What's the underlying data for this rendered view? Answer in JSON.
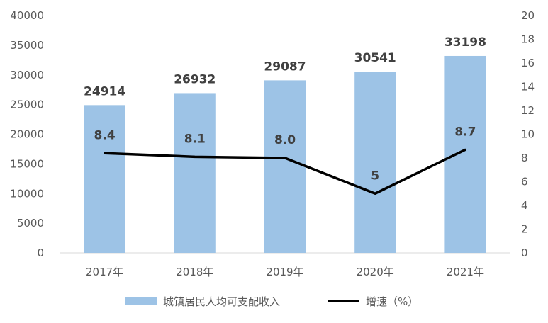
{
  "chart_data": {
    "type": "bar+line",
    "title": "",
    "categories": [
      "2017年",
      "2018年",
      "2019年",
      "2020年",
      "2021年"
    ],
    "series": [
      {
        "name": "城镇居民人均可支配收入",
        "type": "bar",
        "axis": "left",
        "color": "#9dc3e6",
        "values": [
          24914,
          26932,
          29087,
          30541,
          33198
        ],
        "labels": [
          "24914",
          "26932",
          "29087",
          "30541",
          "33198"
        ]
      },
      {
        "name": "增速（%）",
        "type": "line",
        "axis": "right",
        "color": "#000000",
        "values": [
          8.4,
          8.1,
          8.0,
          5,
          8.7
        ],
        "labels": [
          "8.4",
          "8.1",
          "8.0",
          "5",
          "8.7"
        ]
      }
    ],
    "y_left": {
      "ylim": [
        0,
        40000
      ],
      "ticks": [
        "0",
        "5000",
        "10000",
        "15000",
        "20000",
        "25000",
        "30000",
        "35000",
        "40000"
      ]
    },
    "y_right": {
      "ylim": [
        0,
        20
      ],
      "ticks": [
        "0",
        "2",
        "4",
        "6",
        "8",
        "10",
        "12",
        "14",
        "16",
        "18",
        "20"
      ]
    },
    "grid": false,
    "legend_position": "bottom"
  }
}
